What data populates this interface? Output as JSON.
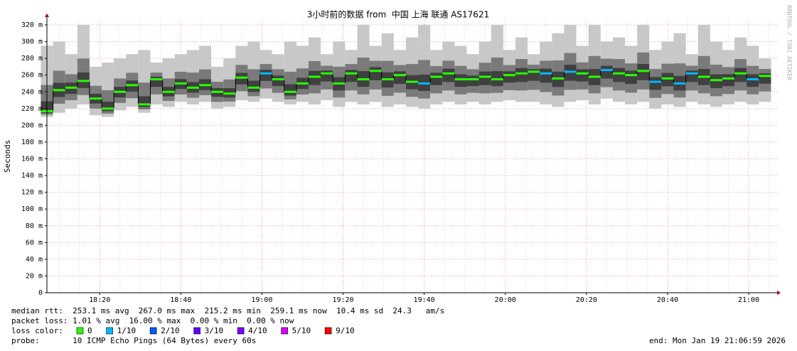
{
  "chart_data": {
    "type": "smokeping",
    "title": "3小时前的数据 from  中国 上海 联通 AS17621",
    "y_label": "Seconds",
    "watermark": "RRDTOOL / TOBI OETIKER",
    "xlim": [
      "18:07",
      "21:07"
    ],
    "xticks": [
      "18:20",
      "18:40",
      "19:00",
      "19:20",
      "19:40",
      "20:00",
      "20:20",
      "20:40",
      "21:00"
    ],
    "ylim": [
      0,
      330
    ],
    "yticks": [
      {
        "value": 0,
        "label": "0"
      },
      {
        "value": 20,
        "label": "20 m"
      },
      {
        "value": 40,
        "label": "40 m"
      },
      {
        "value": 60,
        "label": "60 m"
      },
      {
        "value": 80,
        "label": "80 m"
      },
      {
        "value": 100,
        "label": "100 m"
      },
      {
        "value": 120,
        "label": "120 m"
      },
      {
        "value": 140,
        "label": "140 m"
      },
      {
        "value": 160,
        "label": "160 m"
      },
      {
        "value": 180,
        "label": "180 m"
      },
      {
        "value": 200,
        "label": "200 m"
      },
      {
        "value": 220,
        "label": "220 m"
      },
      {
        "value": 240,
        "label": "240 m"
      },
      {
        "value": 260,
        "label": "260 m"
      },
      {
        "value": 280,
        "label": "280 m"
      },
      {
        "value": 300,
        "label": "300 m"
      },
      {
        "value": 320,
        "label": "320 m"
      }
    ],
    "grid": true,
    "x": [
      "18:07",
      "18:10",
      "18:13",
      "18:16",
      "18:19",
      "18:22",
      "18:25",
      "18:28",
      "18:31",
      "18:34",
      "18:37",
      "18:40",
      "18:43",
      "18:46",
      "18:49",
      "18:52",
      "18:55",
      "18:58",
      "19:01",
      "19:04",
      "19:07",
      "19:10",
      "19:13",
      "19:16",
      "19:19",
      "19:22",
      "19:25",
      "19:28",
      "19:31",
      "19:34",
      "19:37",
      "19:40",
      "19:43",
      "19:46",
      "19:49",
      "19:52",
      "19:55",
      "19:58",
      "20:01",
      "20:04",
      "20:07",
      "20:10",
      "20:13",
      "20:16",
      "20:19",
      "20:22",
      "20:25",
      "20:28",
      "20:31",
      "20:34",
      "20:37",
      "20:40",
      "20:43",
      "20:46",
      "20:49",
      "20:52",
      "20:55",
      "20:58",
      "21:01",
      "21:04"
    ],
    "median": [
      217,
      242,
      245,
      253,
      232,
      220,
      240,
      248,
      225,
      255,
      240,
      250,
      245,
      248,
      240,
      238,
      257,
      245,
      262,
      255,
      240,
      250,
      258,
      262,
      250,
      262,
      255,
      265,
      255,
      260,
      252,
      250,
      258,
      262,
      255,
      255,
      258,
      255,
      260,
      262,
      264,
      262,
      256,
      264,
      262,
      258,
      266,
      262,
      260,
      265,
      252,
      256,
      250,
      262,
      258,
      254,
      256,
      262,
      255,
      259
    ],
    "smoke_low": [
      210,
      215,
      220,
      225,
      212,
      210,
      218,
      222,
      215,
      225,
      222,
      228,
      225,
      228,
      220,
      222,
      230,
      228,
      232,
      228,
      225,
      228,
      225,
      230,
      222,
      228,
      225,
      228,
      222,
      225,
      222,
      220,
      225,
      228,
      225,
      228,
      225,
      228,
      230,
      228,
      228,
      225,
      222,
      228,
      230,
      225,
      232,
      228,
      225,
      228,
      220,
      225,
      222,
      228,
      225,
      222,
      225,
      228,
      225,
      228
    ],
    "smoke_high": [
      295,
      300,
      285,
      320,
      270,
      275,
      280,
      285,
      290,
      275,
      280,
      285,
      290,
      295,
      270,
      280,
      295,
      300,
      290,
      285,
      300,
      295,
      305,
      285,
      300,
      290,
      320,
      295,
      310,
      290,
      305,
      320,
      290,
      300,
      295,
      285,
      300,
      320,
      290,
      305,
      285,
      300,
      310,
      320,
      295,
      320,
      300,
      305,
      295,
      320,
      290,
      300,
      310,
      285,
      320,
      300,
      290,
      305,
      295,
      280
    ],
    "loss": [
      0,
      0,
      0,
      0,
      0,
      0,
      0,
      0,
      0,
      0,
      0,
      0,
      0,
      0,
      0,
      0,
      0,
      0,
      1,
      0,
      0,
      0,
      0,
      0,
      0,
      0,
      0,
      0,
      0,
      0,
      0,
      1,
      0,
      0,
      0,
      0,
      0,
      0,
      0,
      0,
      0,
      1,
      0,
      1,
      0,
      0,
      1,
      0,
      0,
      0,
      1,
      0,
      1,
      1,
      0,
      0,
      0,
      0,
      1,
      0
    ],
    "loss_color_label": "loss color:",
    "loss_legend": [
      {
        "label": "0",
        "color": "#26ff00"
      },
      {
        "label": "1/10",
        "color": "#00b8ff"
      },
      {
        "label": "2/10",
        "color": "#0059ff"
      },
      {
        "label": "3/10",
        "color": "#5e00ff"
      },
      {
        "label": "4/10",
        "color": "#7e00ff"
      },
      {
        "label": "5/10",
        "color": "#dd00ff"
      },
      {
        "label": "9/10",
        "color": "#ff0000"
      }
    ],
    "stats": [
      "median rtt:  253.1 ms avg  267.0 ms max  215.2 ms min  259.1 ms now  10.4 ms sd  24.3   am/s",
      "packet loss: 1.01 % avg  16.00 % max  0.00 % min  0.00 % now"
    ],
    "probe": "probe:       10 ICMP Echo Pings (64 Bytes) every 60s",
    "end": "end: Mon Jan 19 21:06:59 2026"
  }
}
